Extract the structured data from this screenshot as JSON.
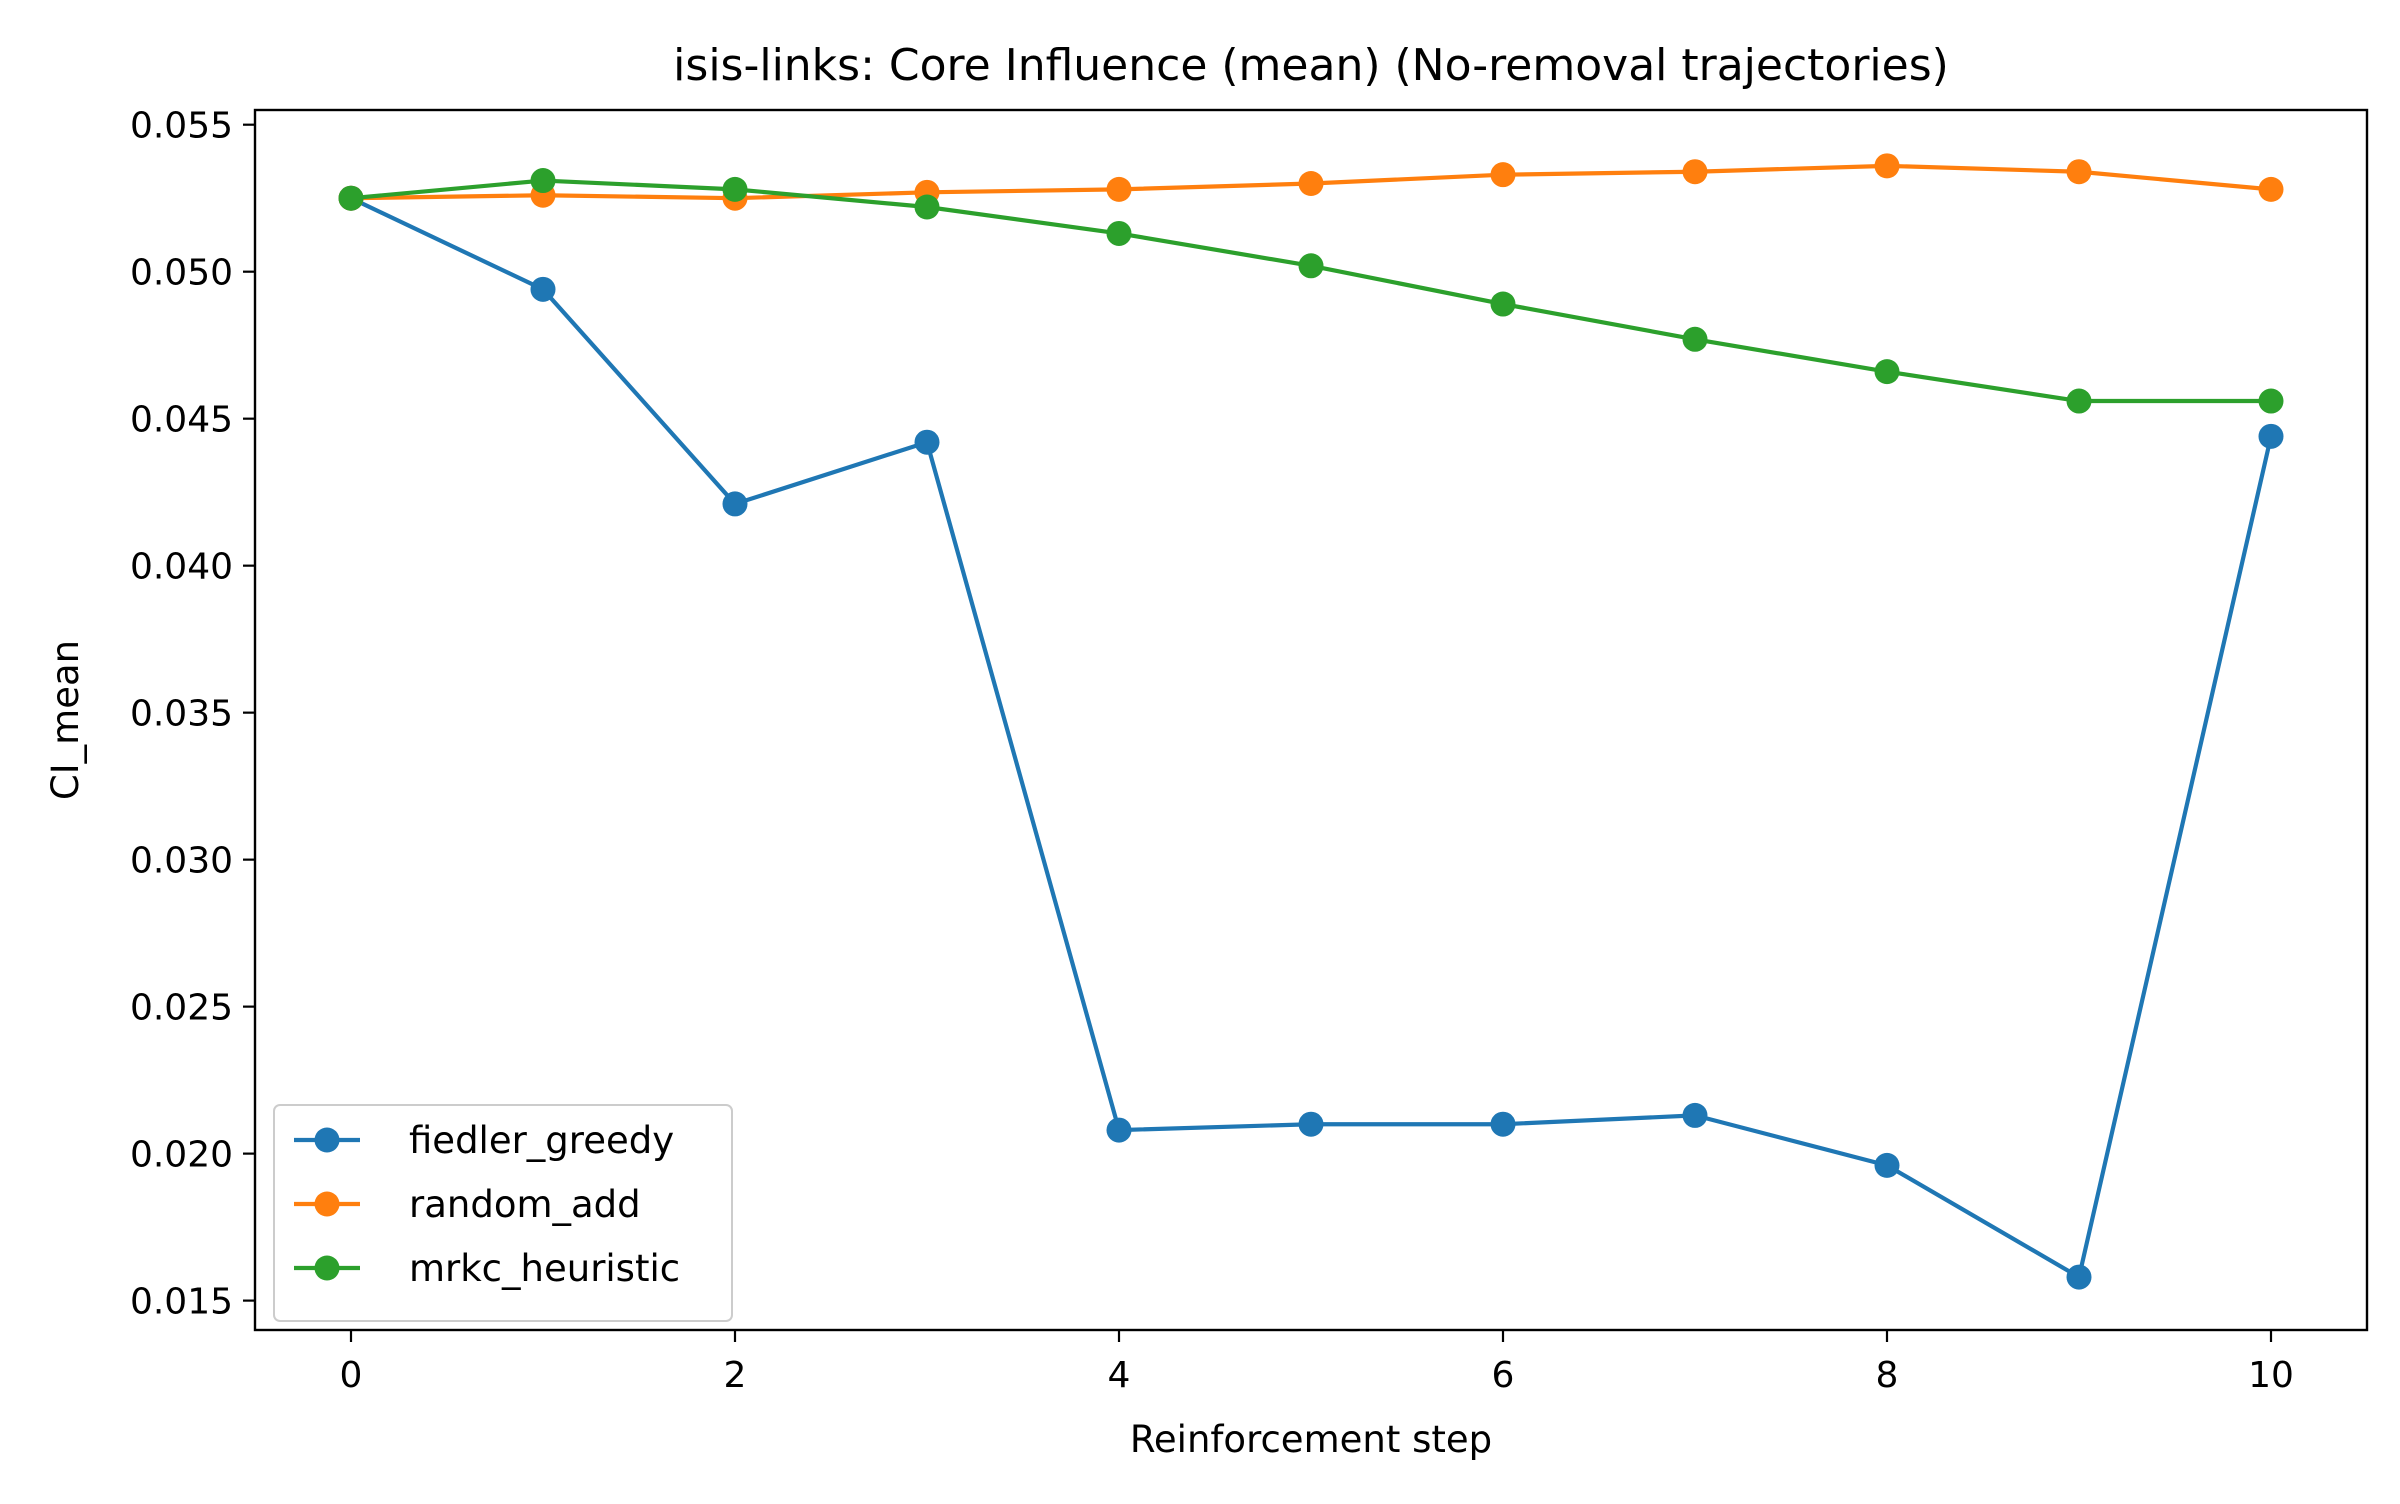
{
  "chart_data": {
    "type": "line",
    "title": "isis-links: Core Influence (mean) (No-removal trajectories)",
    "xlabel": "Reinforcement step",
    "ylabel": "CI_mean",
    "x": [
      0,
      1,
      2,
      3,
      4,
      5,
      6,
      7,
      8,
      9,
      10
    ],
    "xlim": [
      -0.5,
      10.5
    ],
    "ylim": [
      0.014,
      0.0555
    ],
    "xticks": [
      0,
      2,
      4,
      6,
      8,
      10
    ],
    "xtick_labels": [
      "0",
      "2",
      "4",
      "6",
      "8",
      "10"
    ],
    "yticks": [
      0.015,
      0.02,
      0.025,
      0.03,
      0.035,
      0.04,
      0.045,
      0.05,
      0.055
    ],
    "ytick_labels": [
      "0.015",
      "0.020",
      "0.025",
      "0.030",
      "0.035",
      "0.040",
      "0.045",
      "0.050",
      "0.055"
    ],
    "grid": false,
    "legend_position": "lower-left",
    "marker": "circle",
    "series": [
      {
        "name": "fiedler_greedy",
        "color": "#1f77b4",
        "values": [
          0.0525,
          0.0494,
          0.0421,
          0.0442,
          0.0208,
          0.021,
          0.021,
          0.0213,
          0.0196,
          0.0158,
          0.0444
        ]
      },
      {
        "name": "random_add",
        "color": "#ff7f0e",
        "values": [
          0.0525,
          0.0526,
          0.0525,
          0.0527,
          0.0528,
          0.053,
          0.0533,
          0.0534,
          0.0536,
          0.0534,
          0.0528
        ]
      },
      {
        "name": "mrkc_heuristic",
        "color": "#2ca02c",
        "values": [
          0.0525,
          0.0531,
          0.0528,
          0.0522,
          0.0513,
          0.0502,
          0.0489,
          0.0477,
          0.0466,
          0.0456,
          0.0456
        ]
      }
    ]
  }
}
